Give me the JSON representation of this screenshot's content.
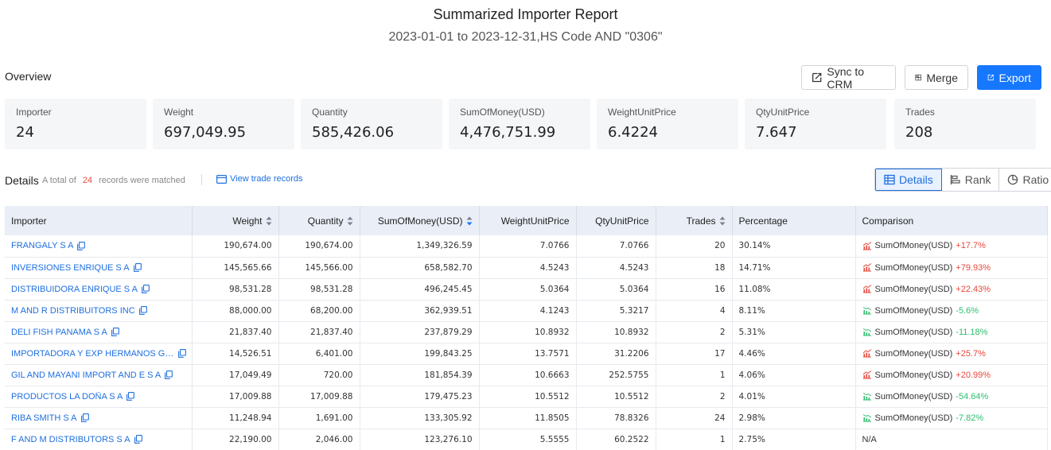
{
  "header": {
    "title": "Summarized Importer Report",
    "subtitle": "2023-01-01 to 2023-12-31,HS Code AND \"0306\""
  },
  "overview": {
    "label": "Overview",
    "buttons": {
      "sync": "Sync to CRM",
      "merge": "Merge",
      "export": "Export"
    },
    "cards": [
      {
        "label": "Importer",
        "value": "24"
      },
      {
        "label": "Weight",
        "value": "697,049.95"
      },
      {
        "label": "Quantity",
        "value": "585,426.06"
      },
      {
        "label": "SumOfMoney(USD)",
        "value": "4,476,751.99"
      },
      {
        "label": "WeightUnitPrice",
        "value": "6.4224"
      },
      {
        "label": "QtyUnitPrice",
        "value": "7.647"
      },
      {
        "label": "Trades",
        "value": "208"
      }
    ]
  },
  "details": {
    "label": "Details",
    "count_prefix": "A total of",
    "count": "24",
    "count_suffix": "records were matched",
    "view_records": "View trade records",
    "views": {
      "details": "Details",
      "rank": "Rank",
      "ratio": "Ratio"
    }
  },
  "table": {
    "columns": {
      "importer": "Importer",
      "weight": "Weight",
      "quantity": "Quantity",
      "money": "SumOfMoney(USD)",
      "wup": "WeightUnitPrice",
      "qup": "QtyUnitPrice",
      "trades": "Trades",
      "percentage": "Percentage",
      "comparison": "Comparison"
    },
    "rows": [
      {
        "importer": "FRANGALY S A",
        "weight": "190,674.00",
        "quantity": "190,674.00",
        "money": "1,349,326.59",
        "wup": "7.0766",
        "qup": "7.0766",
        "trades": "20",
        "pct": "30.14%",
        "cmp_label": "SumOfMoney(USD)",
        "cmp_delta": "+17.7%",
        "dir": "up"
      },
      {
        "importer": "INVERSIONES ENRIQUE S A",
        "weight": "145,565.66",
        "quantity": "145,566.00",
        "money": "658,582.70",
        "wup": "4.5243",
        "qup": "4.5243",
        "trades": "18",
        "pct": "14.71%",
        "cmp_label": "SumOfMoney(USD)",
        "cmp_delta": "+79.93%",
        "dir": "up"
      },
      {
        "importer": "DISTRIBUIDORA ENRIQUE S A",
        "weight": "98,531.28",
        "quantity": "98,531.28",
        "money": "496,245.45",
        "wup": "5.0364",
        "qup": "5.0364",
        "trades": "16",
        "pct": "11.08%",
        "cmp_label": "SumOfMoney(USD)",
        "cmp_delta": "+22.43%",
        "dir": "up"
      },
      {
        "importer": "M AND R DISTRIBUITORS INC",
        "weight": "88,000.00",
        "quantity": "68,200.00",
        "money": "362,939.51",
        "wup": "4.1243",
        "qup": "5.3217",
        "trades": "4",
        "pct": "8.11%",
        "cmp_label": "SumOfMoney(USD)",
        "cmp_delta": "-5.6%",
        "dir": "down"
      },
      {
        "importer": "DELI FISH PANAMA S A",
        "weight": "21,837.40",
        "quantity": "21,837.40",
        "money": "237,879.29",
        "wup": "10.8932",
        "qup": "10.8932",
        "trades": "2",
        "pct": "5.31%",
        "cmp_label": "SumOfMoney(USD)",
        "cmp_delta": "-11.18%",
        "dir": "down"
      },
      {
        "importer": "IMPORTADORA Y EXP HERMANOS GA...",
        "weight": "14,526.51",
        "quantity": "6,401.00",
        "money": "199,843.25",
        "wup": "13.7571",
        "qup": "31.2206",
        "trades": "17",
        "pct": "4.46%",
        "cmp_label": "SumOfMoney(USD)",
        "cmp_delta": "+25.7%",
        "dir": "up"
      },
      {
        "importer": "GIL AND MAYANI IMPORT AND E S A",
        "weight": "17,049.49",
        "quantity": "720.00",
        "money": "181,854.39",
        "wup": "10.6663",
        "qup": "252.5755",
        "trades": "1",
        "pct": "4.06%",
        "cmp_label": "SumOfMoney(USD)",
        "cmp_delta": "+20.99%",
        "dir": "up"
      },
      {
        "importer": "PRODUCTOS LA DOÑA S A",
        "weight": "17,009.88",
        "quantity": "17,009.88",
        "money": "179,475.23",
        "wup": "10.5512",
        "qup": "10.5512",
        "trades": "2",
        "pct": "4.01%",
        "cmp_label": "SumOfMoney(USD)",
        "cmp_delta": "-54.64%",
        "dir": "down"
      },
      {
        "importer": "RIBA SMITH S A",
        "weight": "11,248.94",
        "quantity": "1,691.00",
        "money": "133,305.92",
        "wup": "11.8505",
        "qup": "78.8326",
        "trades": "24",
        "pct": "2.98%",
        "cmp_label": "SumOfMoney(USD)",
        "cmp_delta": "-7.82%",
        "dir": "down"
      },
      {
        "importer": "F AND M DISTRIBUTORS S A",
        "weight": "22,190.00",
        "quantity": "2,046.00",
        "money": "123,276.10",
        "wup": "5.5555",
        "qup": "60.2522",
        "trades": "1",
        "pct": "2.75%",
        "cmp_label": "N/A",
        "cmp_delta": "",
        "dir": "none"
      }
    ]
  },
  "colors": {
    "accent": "#1677ff",
    "up": "#e8473b",
    "down": "#2ebd6e",
    "link": "#1f6fe0"
  }
}
